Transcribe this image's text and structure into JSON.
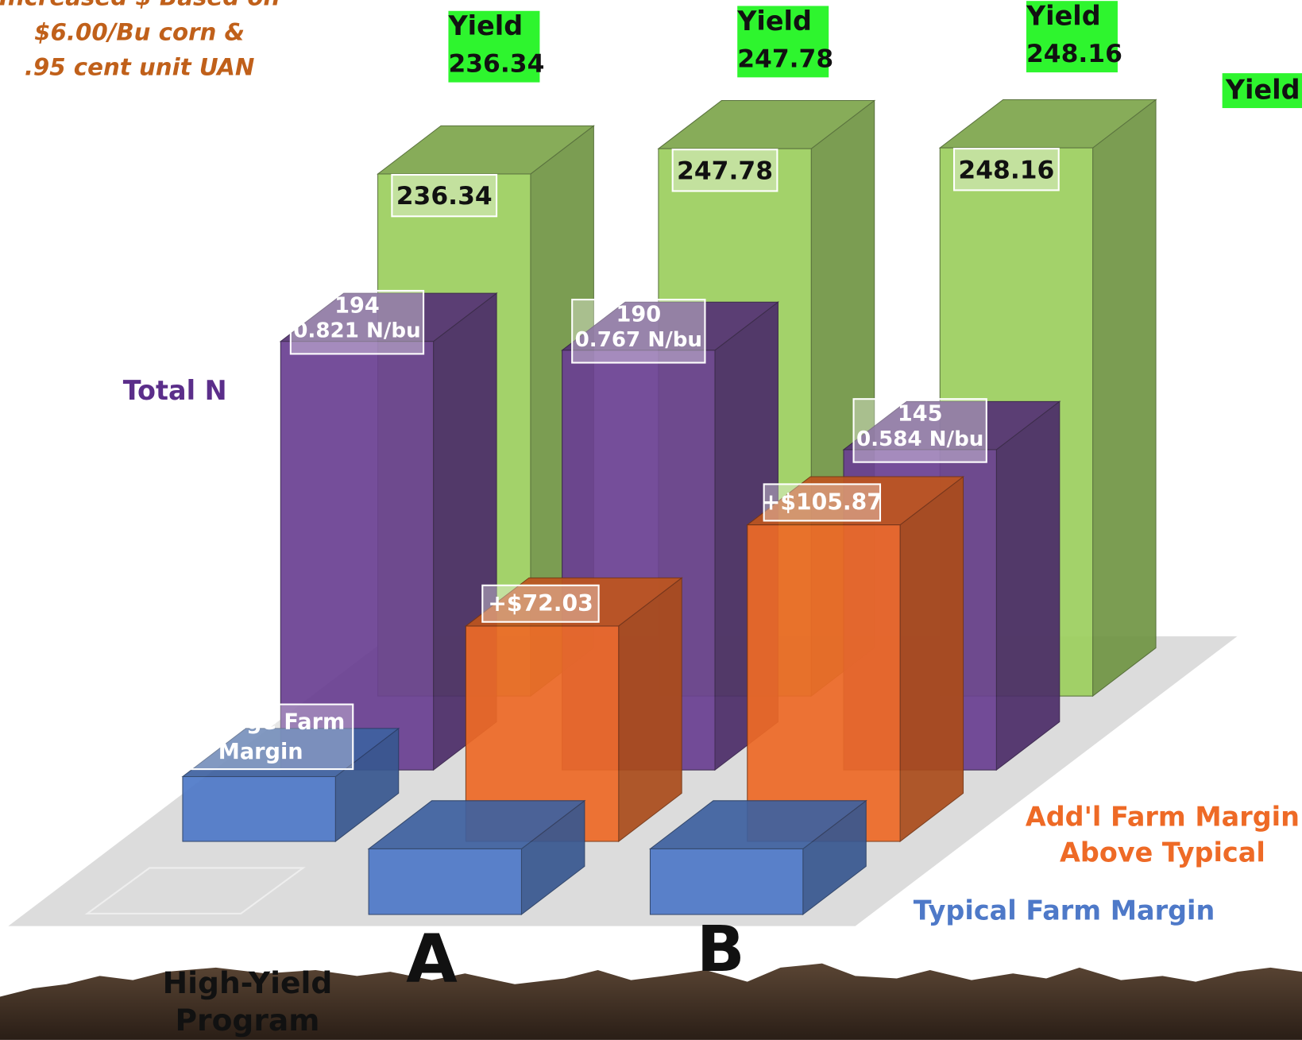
{
  "chart_data": {
    "type": "bar3d",
    "annotations": [
      "Increased $ Based on",
      "$6.00/Bu corn &",
      ".95 cent unit UAN"
    ],
    "categories": [
      "High-Yield Program",
      "A",
      "B"
    ],
    "series": [
      {
        "name": "Yield",
        "color": "#9ccf5e",
        "values": [
          236.34,
          247.78,
          248.16
        ]
      },
      {
        "name": "Total N",
        "color": "#6a3f92",
        "values": [
          194,
          190,
          145
        ],
        "secondary_labels": [
          "0.821 N/bu",
          "0.767 N/bu",
          "0.584 N/bu"
        ]
      },
      {
        "name": "Add'l Farm Margin Above Typical",
        "color": "#ee6a26",
        "values": [
          null,
          72.03,
          105.87
        ],
        "value_labels": [
          null,
          "+$72.03",
          "+$105.87"
        ]
      }
    ],
    "baselines": [
      {
        "name": "Average Farm Margin",
        "color": "#4e79c8"
      },
      {
        "name": "Typical Farm Margin",
        "color": "#4e79c8"
      }
    ]
  }
}
